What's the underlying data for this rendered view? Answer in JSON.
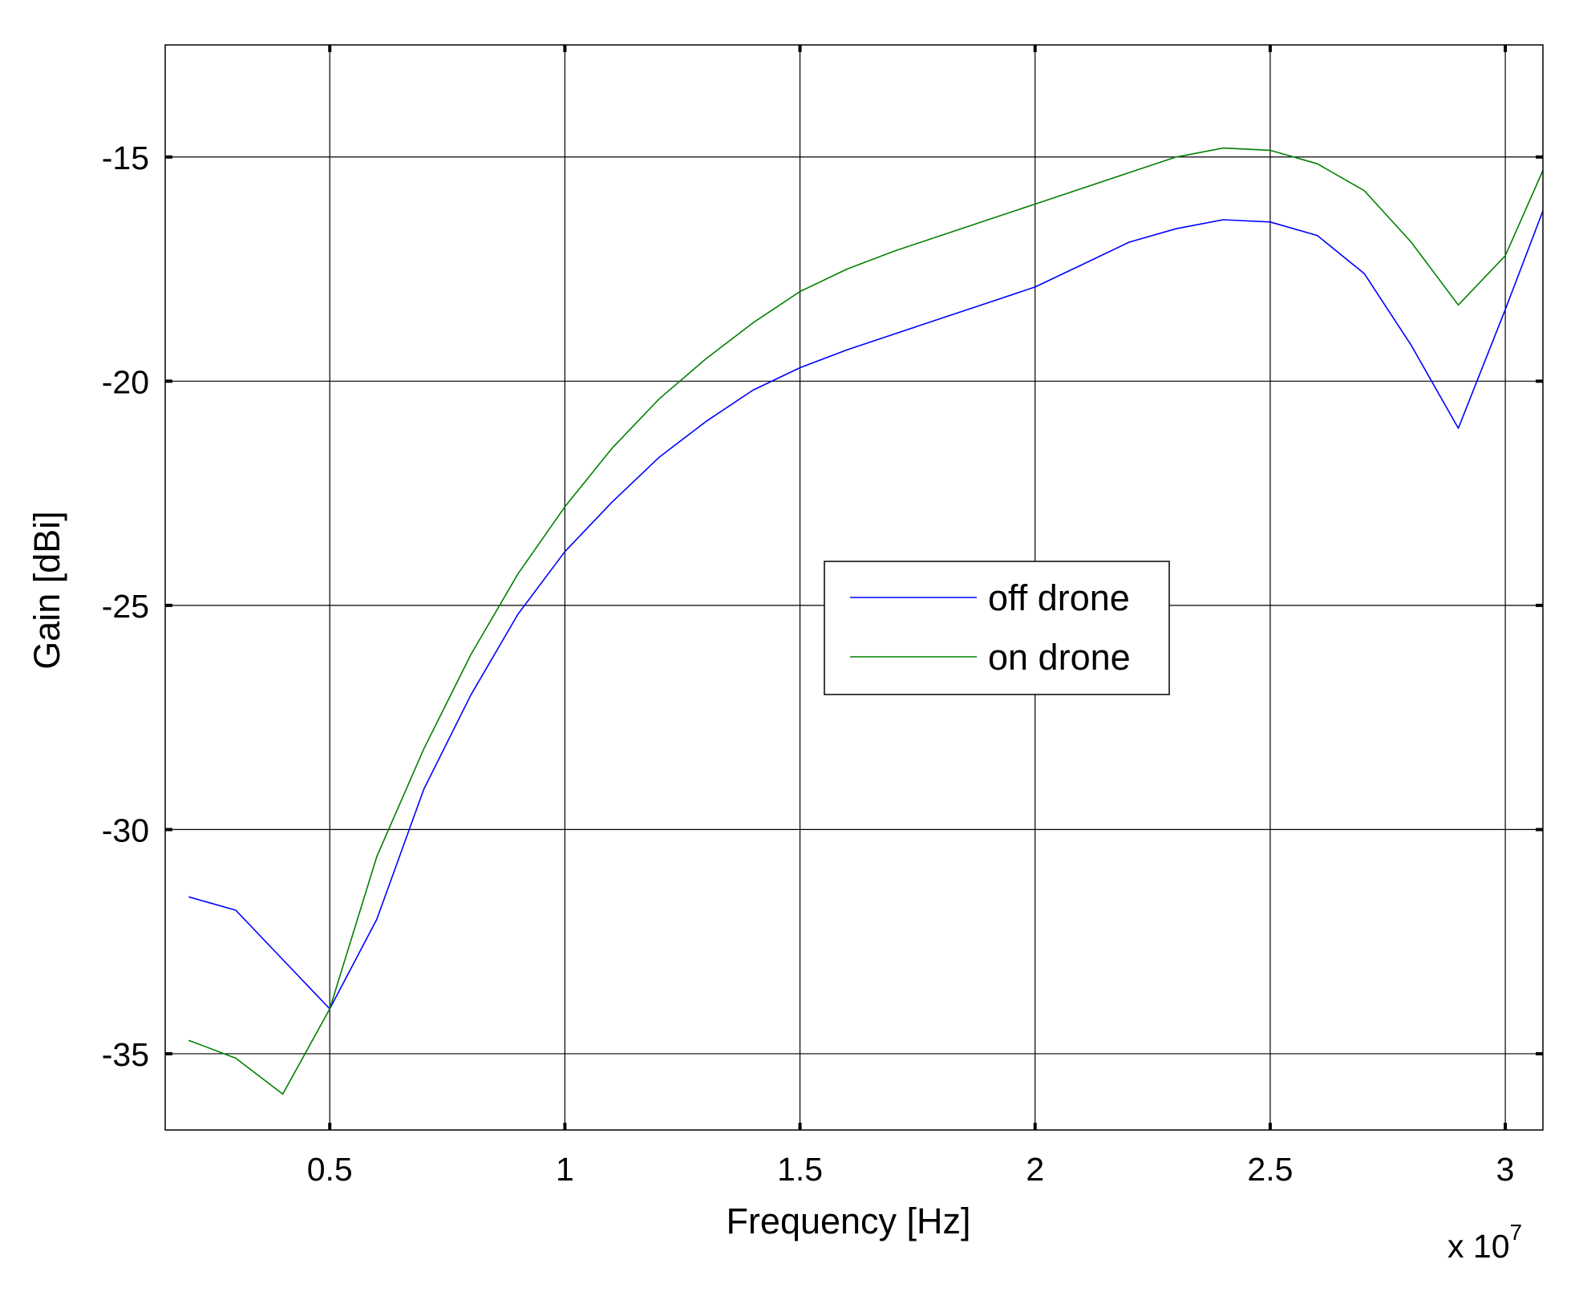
{
  "chart_data": {
    "type": "line",
    "title": "",
    "xlabel": "Frequency [Hz]",
    "ylabel": "Gain [dBi]",
    "x_multiplier_prefix": "x 10",
    "x_multiplier_exponent": "7",
    "xlim": [
      0.15,
      3.08
    ],
    "ylim": [
      -36.7,
      -12.5
    ],
    "xticks": [
      0.5,
      1,
      1.5,
      2,
      2.5,
      3
    ],
    "xtick_labels": [
      "0.5",
      "1",
      "1.5",
      "2",
      "2.5",
      "3"
    ],
    "yticks": [
      -35,
      -30,
      -25,
      -20,
      -15
    ],
    "ytick_labels": [
      "-35",
      "-30",
      "-25",
      "-20",
      "-15"
    ],
    "grid": true,
    "legend_position": "center-right",
    "x": [
      0.2,
      0.3,
      0.4,
      0.5,
      0.6,
      0.7,
      0.8,
      0.9,
      1.0,
      1.1,
      1.2,
      1.3,
      1.4,
      1.5,
      1.6,
      1.7,
      1.8,
      1.9,
      2.0,
      2.1,
      2.2,
      2.3,
      2.4,
      2.5,
      2.6,
      2.7,
      2.8,
      2.9,
      3.0,
      3.08
    ],
    "series": [
      {
        "name": "off drone",
        "color": "#0000ff",
        "values": [
          -31.5,
          -31.8,
          -32.9,
          -34.0,
          -32.0,
          -29.1,
          -27.0,
          -25.2,
          -23.8,
          -22.7,
          -21.7,
          -20.9,
          -20.2,
          -19.7,
          -19.3,
          -18.95,
          -18.6,
          -18.25,
          -17.9,
          -17.4,
          -16.9,
          -16.6,
          -16.4,
          -16.45,
          -16.75,
          -17.6,
          -19.2,
          -21.05,
          -18.4,
          -16.2
        ]
      },
      {
        "name": "on drone",
        "color": "#008000",
        "values": [
          -34.7,
          -35.1,
          -35.9,
          -34.0,
          -30.6,
          -28.2,
          -26.1,
          -24.3,
          -22.8,
          -21.5,
          -20.4,
          -19.5,
          -18.7,
          -18.0,
          -17.5,
          -17.1,
          -16.75,
          -16.4,
          -16.05,
          -15.7,
          -15.35,
          -15.0,
          -14.8,
          -14.85,
          -15.15,
          -15.75,
          -16.9,
          -18.3,
          -17.2,
          -15.3
        ]
      }
    ]
  }
}
